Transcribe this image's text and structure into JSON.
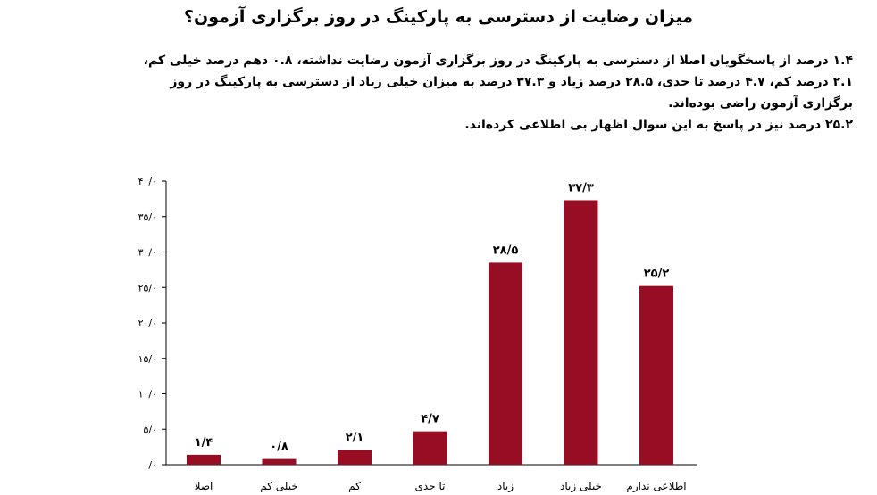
{
  "title": "میزان رضایت از دسترسی به پارکینگ در روز برگزاری آزمون؟",
  "description": [
    "۱.۴ درصد از پاسخگویان اصلا از دسترسی به پارکینگ در روز برگزاری آزمون رضایت نداشته، ۰.۸ دهم درصد خیلی کم، ۲.۱ درصد کم، ۴.۷ درصد تا حدی، ۲۸.۵ درصد زیاد و ۳۷.۳ درصد به میزان خیلی زیاد از دسترسی به پارکینگ در روز برگزاری آزمون راضی بوده‌اند.",
    "۲۵.۲ درصد نیز در پاسخ به این سوال اظهار بی اطلاعی کرده‌اند."
  ],
  "chart_data": {
    "type": "bar",
    "categories": [
      "اصلا",
      "خیلی کم",
      "کم",
      "تا حدی",
      "زیاد",
      "خیلی زیاد",
      "اطلاعی ندارم"
    ],
    "values": [
      1.4,
      0.8,
      2.1,
      4.7,
      28.5,
      37.3,
      25.2
    ],
    "data_labels": [
      "۱/۴",
      "۰/۸",
      "۲/۱",
      "۴/۷",
      "۲۸/۵",
      "۳۷/۳",
      "۲۵/۲"
    ],
    "y_ticks": [
      0,
      5,
      10,
      15,
      20,
      25,
      30,
      35,
      40
    ],
    "y_tick_labels": [
      "۰/۰",
      "۵/۰",
      "۱۰/۰",
      "۱۵/۰",
      "۲۰/۰",
      "۲۵/۰",
      "۳۰/۰",
      "۳۵/۰",
      "۴۰/۰"
    ],
    "ylim": [
      0,
      40
    ],
    "grid": false,
    "bar_color": "#960d24"
  }
}
